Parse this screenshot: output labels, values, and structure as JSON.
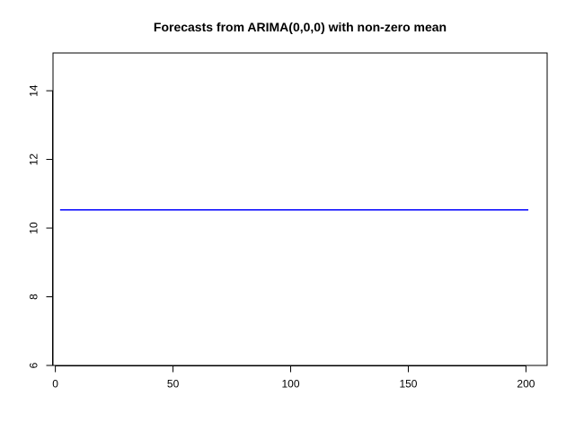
{
  "chart_data": {
    "type": "line",
    "title": "Forecasts from ARIMA(0,0,0) with non-zero mean",
    "xlabel": "",
    "ylabel": "",
    "xlim": [
      -1,
      209
    ],
    "ylim": [
      6,
      15.1
    ],
    "xticks": [
      0,
      50,
      100,
      150,
      200
    ],
    "xtick_labels": [
      "0",
      "50",
      "100",
      "150",
      "200"
    ],
    "yticks": [
      6,
      8,
      10,
      12,
      14
    ],
    "ytick_labels": [
      "6",
      "8",
      "10",
      "12",
      "14"
    ],
    "grid": false,
    "series": [
      {
        "color": "#0000ff",
        "x": [
          2,
          201
        ],
        "y": [
          10.53,
          10.53
        ]
      }
    ]
  }
}
